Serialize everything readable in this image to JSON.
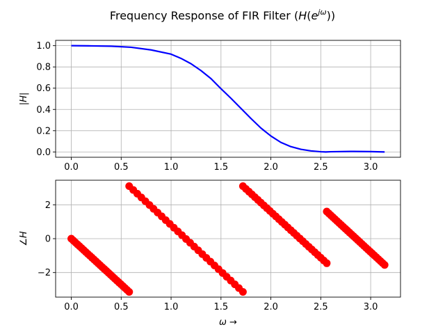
{
  "chart_data": [
    {
      "type": "line",
      "title": "Frequency Response of FIR Filter (H(e^{jω}))",
      "xlabel": "",
      "ylabel": "|H|",
      "xlim": [
        -0.157,
        3.299
      ],
      "ylim": [
        -0.05,
        1.05
      ],
      "xticks": [
        "0.0",
        "0.5",
        "1.0",
        "1.5",
        "2.0",
        "2.5",
        "3.0"
      ],
      "yticks": [
        "0.0",
        "0.2",
        "0.4",
        "0.6",
        "0.8",
        "1.0"
      ],
      "grid": true,
      "series": [
        {
          "color": "#0000ff",
          "x": [
            0.0,
            0.2,
            0.4,
            0.6,
            0.8,
            1.0,
            1.1,
            1.2,
            1.3,
            1.4,
            1.5,
            1.6,
            1.7,
            1.8,
            1.9,
            2.0,
            2.1,
            2.2,
            2.3,
            2.4,
            2.5,
            2.55,
            2.6,
            2.8,
            3.0,
            3.14
          ],
          "y": [
            1.0,
            0.998,
            0.995,
            0.985,
            0.96,
            0.92,
            0.88,
            0.83,
            0.765,
            0.69,
            0.595,
            0.505,
            0.41,
            0.315,
            0.225,
            0.15,
            0.09,
            0.05,
            0.025,
            0.01,
            0.002,
            0.0,
            0.002,
            0.005,
            0.003,
            0.0
          ]
        }
      ]
    },
    {
      "type": "scatter",
      "title": "",
      "xlabel": "ω →",
      "ylabel": "∠H",
      "xlim": [
        -0.157,
        3.299
      ],
      "ylim": [
        -3.45,
        3.45
      ],
      "xticks": [
        "0.0",
        "0.5",
        "1.0",
        "1.5",
        "2.0",
        "2.5",
        "3.0"
      ],
      "yticks": [
        "−2",
        "0",
        "2"
      ],
      "grid": true,
      "series": [
        {
          "color": "#ff0000",
          "segments": [
            {
              "x": [
                0.0,
                0.58
              ],
              "y": [
                0.0,
                -3.14
              ]
            },
            {
              "x": [
                0.58,
                1.72
              ],
              "y": [
                3.1,
                -3.14
              ]
            },
            {
              "x": [
                1.72,
                2.56
              ],
              "y": [
                3.1,
                -1.45
              ]
            },
            {
              "x": [
                2.56,
                3.14
              ],
              "y": [
                1.6,
                -1.55
              ]
            }
          ]
        }
      ]
    }
  ]
}
